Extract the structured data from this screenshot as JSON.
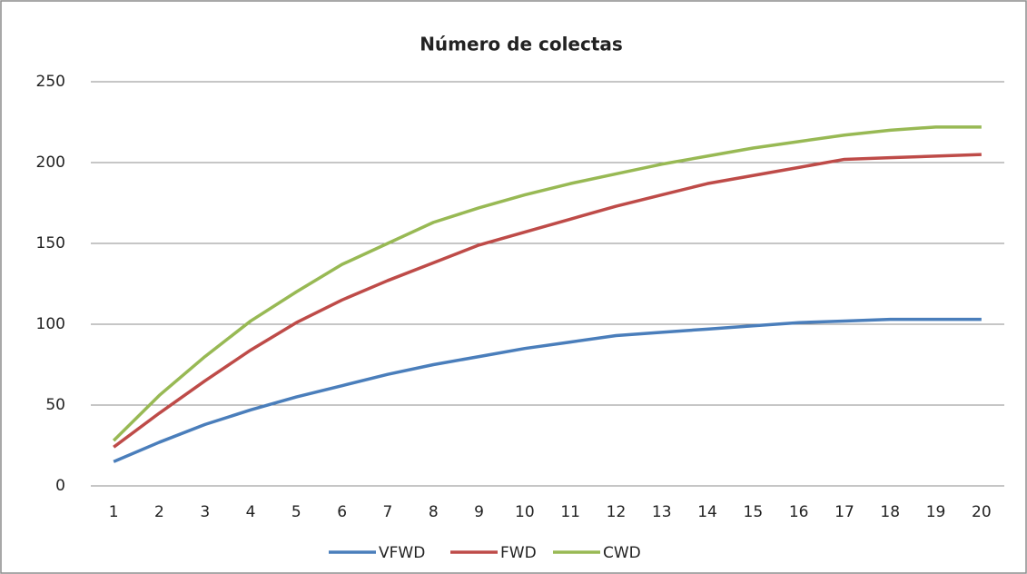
{
  "chart_data": {
    "type": "line",
    "title": "Número de colectas",
    "categories": [
      "1",
      "2",
      "3",
      "4",
      "5",
      "6",
      "7",
      "8",
      "9",
      "10",
      "11",
      "12",
      "13",
      "14",
      "15",
      "16",
      "17",
      "18",
      "19",
      "20"
    ],
    "series": [
      {
        "name": "VFWD",
        "color": "#4a7ebb",
        "values": [
          15,
          27,
          38,
          47,
          55,
          62,
          69,
          75,
          80,
          85,
          89,
          93,
          95,
          97,
          99,
          101,
          102,
          103,
          103,
          103
        ]
      },
      {
        "name": "FWD",
        "color": "#be4b48",
        "values": [
          24,
          45,
          65,
          84,
          101,
          115,
          127,
          138,
          149,
          157,
          165,
          173,
          180,
          187,
          192,
          197,
          202,
          203,
          204,
          205
        ]
      },
      {
        "name": "CWD",
        "color": "#98b954",
        "values": [
          28,
          56,
          80,
          102,
          120,
          137,
          150,
          163,
          172,
          180,
          187,
          193,
          199,
          204,
          209,
          213,
          217,
          220,
          222,
          222
        ]
      }
    ],
    "ylim": [
      0,
      250
    ],
    "yticks": [
      0,
      50,
      100,
      150,
      200,
      250
    ],
    "grid": true,
    "legend": "bottom"
  }
}
